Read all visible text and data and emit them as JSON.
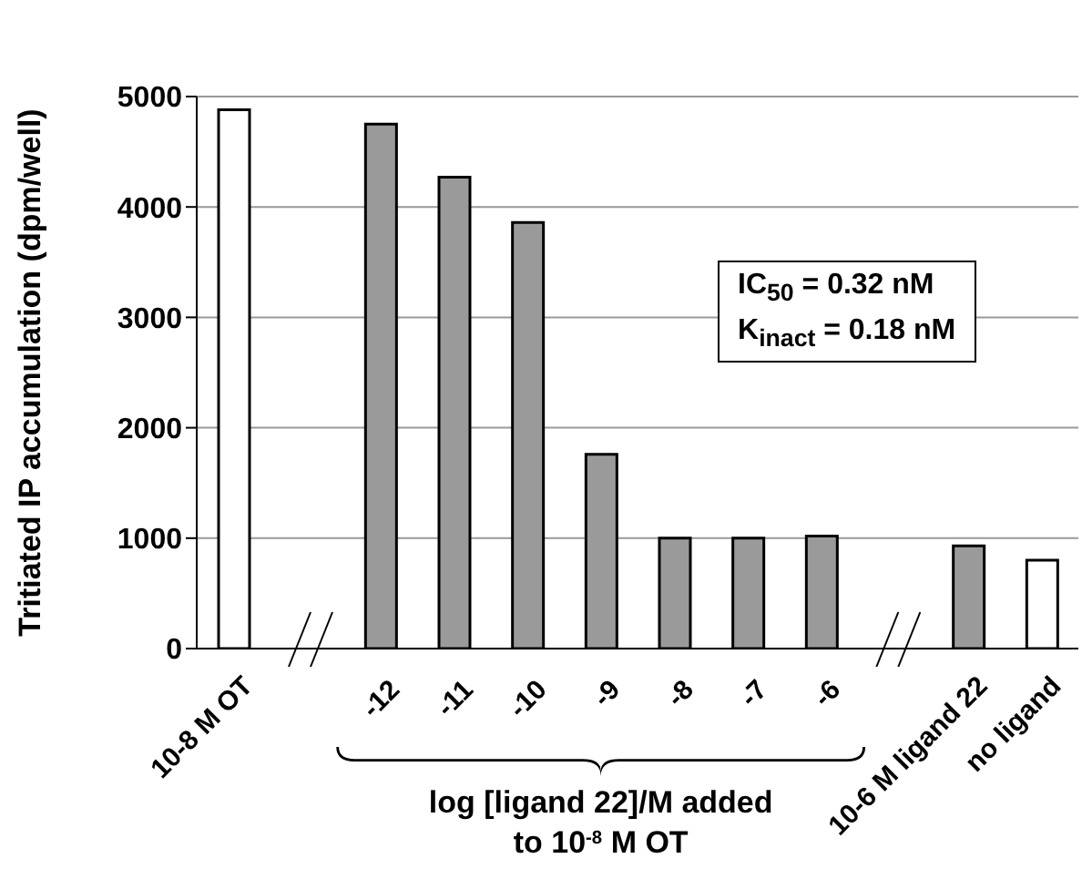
{
  "chart_data": {
    "type": "bar",
    "categories": [
      "10-8 M OT",
      null,
      "-12",
      "-11",
      "-10",
      "-9",
      "-8",
      "-7",
      "-6",
      null,
      "10-6 M ligand 22",
      "no ligand"
    ],
    "values": [
      4880,
      null,
      4750,
      4270,
      3860,
      1760,
      1000,
      1000,
      1020,
      null,
      930,
      800
    ],
    "colors": [
      "#ffffff",
      null,
      "#9a9a9a",
      "#9a9a9a",
      "#9a9a9a",
      "#9a9a9a",
      "#9a9a9a",
      "#9a9a9a",
      "#9a9a9a",
      null,
      "#9a9a9a",
      "#ffffff"
    ],
    "xlabel": "log [ligand 22]/M added to 10$^{-8}$ M OT",
    "ylabel": "Tritiated IP accumulation (dpm/well)",
    "ylim": [
      0,
      5000
    ],
    "yticks": [
      0,
      1000,
      2000,
      3000,
      4000,
      5000
    ],
    "grid": "y",
    "legend": false,
    "annotations": [
      "IC$_{50}$ = 0.32 nM",
      "K$_{inact}$ = 0.18 nM"
    ]
  }
}
